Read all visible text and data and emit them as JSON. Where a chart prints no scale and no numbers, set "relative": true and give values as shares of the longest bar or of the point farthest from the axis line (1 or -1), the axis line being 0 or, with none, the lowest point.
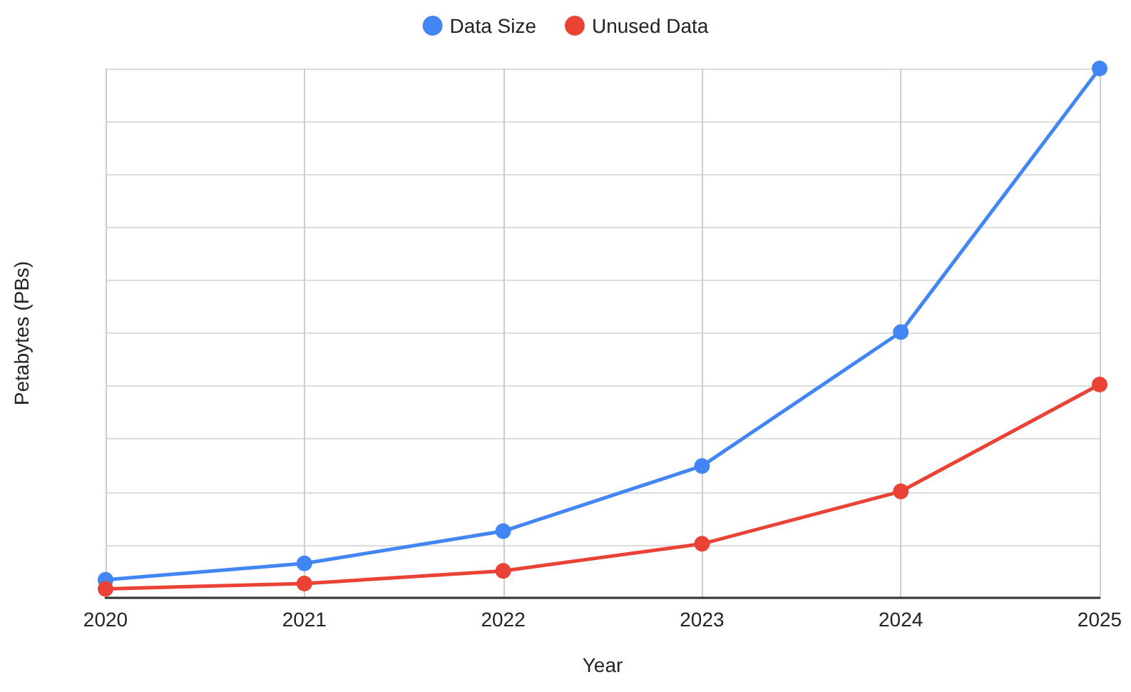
{
  "chart_data": {
    "type": "line",
    "relative": true,
    "xlabel": "Year",
    "ylabel": "Petabytes (PBs)",
    "categories": [
      "2020",
      "2021",
      "2022",
      "2023",
      "2024",
      "2025"
    ],
    "series": [
      {
        "name": "Data Size",
        "color": "#4285f4",
        "values": [
          0.034,
          0.065,
          0.126,
          0.249,
          0.502,
          1
        ]
      },
      {
        "name": "Unused Data",
        "color": "#ea4335",
        "values": [
          0.017,
          0.027,
          0.051,
          0.102,
          0.201,
          0.403
        ]
      }
    ],
    "grid": true,
    "legend": "top",
    "marker": "circle",
    "line_style": "solid"
  }
}
